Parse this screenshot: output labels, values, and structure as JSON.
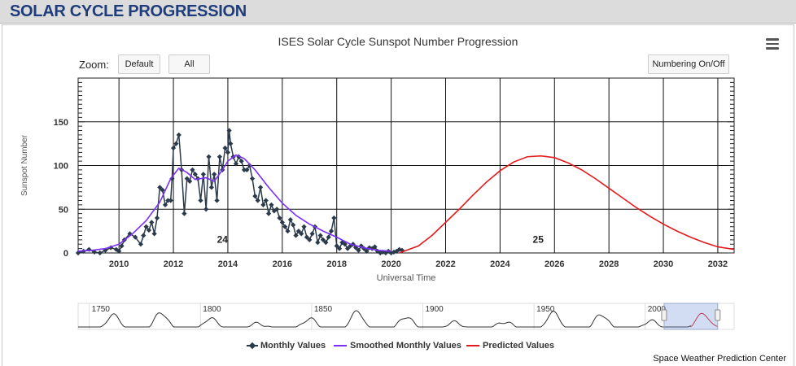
{
  "header": {
    "title": "SOLAR CYCLE PROGRESSION"
  },
  "chart": {
    "title": "ISES Solar Cycle Sunspot Number Progression",
    "zoom_label": "Zoom:",
    "zoom_buttons": [
      "Default",
      "All"
    ],
    "numbering_button": "Numbering On/Off",
    "credit": "Space Weather Prediction Center"
  },
  "chart_data": {
    "type": "line",
    "title": "ISES Solar Cycle Sunspot Number Progression",
    "xlabel": "Universal Time",
    "ylabel": "Sunspot Number",
    "xlim": [
      2008.5,
      2032.6
    ],
    "ylim": [
      0,
      200
    ],
    "x_ticks": [
      "2010",
      "2012",
      "2014",
      "2016",
      "2018",
      "2020",
      "2022",
      "2024",
      "2026",
      "2028",
      "2030",
      "2032"
    ],
    "y_ticks": [
      "0",
      "50",
      "100",
      "150"
    ],
    "grid": true,
    "cycle_labels": [
      {
        "label": "24",
        "x": 2013.8
      },
      {
        "label": "25",
        "x": 2025.4
      }
    ],
    "series": [
      {
        "name": "Monthly Values",
        "color": "#2b3a4a",
        "x": [
          2008.5,
          2008.7,
          2008.9,
          2009.1,
          2009.3,
          2009.5,
          2009.7,
          2009.9,
          2010.0,
          2010.1,
          2010.2,
          2010.4,
          2010.6,
          2010.8,
          2010.9,
          2011.0,
          2011.1,
          2011.2,
          2011.3,
          2011.4,
          2011.5,
          2011.6,
          2011.7,
          2011.8,
          2011.9,
          2011.95,
          2012.0,
          2012.1,
          2012.2,
          2012.3,
          2012.4,
          2012.5,
          2012.6,
          2012.7,
          2012.8,
          2012.9,
          2013.0,
          2013.1,
          2013.2,
          2013.3,
          2013.4,
          2013.5,
          2013.6,
          2013.7,
          2013.8,
          2013.9,
          2014.0,
          2014.05,
          2014.1,
          2014.2,
          2014.3,
          2014.4,
          2014.5,
          2014.6,
          2014.7,
          2014.8,
          2014.9,
          2015.0,
          2015.1,
          2015.2,
          2015.3,
          2015.4,
          2015.5,
          2015.6,
          2015.7,
          2015.8,
          2015.9,
          2016.0,
          2016.1,
          2016.2,
          2016.3,
          2016.4,
          2016.5,
          2016.6,
          2016.7,
          2016.8,
          2016.9,
          2017.0,
          2017.1,
          2017.2,
          2017.3,
          2017.4,
          2017.5,
          2017.6,
          2017.7,
          2017.8,
          2017.9,
          2018.0,
          2018.1,
          2018.2,
          2018.3,
          2018.4,
          2018.5,
          2018.6,
          2018.7,
          2018.8,
          2018.9,
          2019.0,
          2019.1,
          2019.2,
          2019.3,
          2019.4,
          2019.5,
          2019.6,
          2019.7,
          2019.8,
          2019.9,
          2020.0,
          2020.1,
          2020.2,
          2020.3,
          2020.4
        ],
        "values": [
          0,
          2,
          4,
          1,
          0,
          3,
          6,
          4,
          2,
          8,
          15,
          22,
          18,
          10,
          20,
          30,
          26,
          35,
          22,
          40,
          75,
          72,
          55,
          60,
          60,
          85,
          120,
          125,
          135,
          95,
          45,
          85,
          82,
          95,
          90,
          85,
          60,
          90,
          50,
          110,
          75,
          90,
          60,
          110,
          95,
          120,
          115,
          140,
          125,
          110,
          102,
          110,
          105,
          95,
          95,
          100,
          85,
          65,
          60,
          75,
          55,
          60,
          45,
          55,
          48,
          50,
          40,
          35,
          30,
          25,
          38,
          32,
          20,
          25,
          22,
          30,
          18,
          15,
          22,
          30,
          12,
          20,
          15,
          12,
          18,
          25,
          40,
          8,
          5,
          12,
          10,
          5,
          8,
          10,
          6,
          3,
          8,
          5,
          2,
          6,
          5,
          7,
          2,
          0,
          1,
          0,
          2,
          0,
          1,
          2,
          4,
          3
        ]
      },
      {
        "name": "Smoothed Monthly Values",
        "color": "#7b2ff7",
        "x": [
          2008.5,
          2009.0,
          2009.5,
          2010.0,
          2010.5,
          2011.0,
          2011.5,
          2011.9,
          2012.2,
          2012.5,
          2012.8,
          2013.2,
          2013.5,
          2013.8,
          2014.0,
          2014.3,
          2014.6,
          2015.0,
          2015.5,
          2016.0,
          2016.5,
          2017.0,
          2017.5,
          2018.0,
          2018.5,
          2019.0,
          2019.5,
          2020.0
        ],
        "values": [
          2,
          3,
          5,
          10,
          22,
          37,
          58,
          85,
          97,
          92,
          84,
          86,
          82,
          95,
          105,
          112,
          108,
          95,
          75,
          57,
          43,
          33,
          25,
          18,
          10,
          6,
          3,
          2
        ]
      },
      {
        "name": "Predicted Values",
        "color": "#e41a1c",
        "x": [
          2020.3,
          2021.0,
          2021.5,
          2022.0,
          2022.5,
          2023.0,
          2023.5,
          2024.0,
          2024.5,
          2025.0,
          2025.5,
          2026.0,
          2026.5,
          2027.0,
          2027.5,
          2028.0,
          2028.5,
          2029.0,
          2029.5,
          2030.0,
          2030.5,
          2031.0,
          2031.5,
          2032.0,
          2032.6
        ],
        "values": [
          0,
          8,
          20,
          35,
          50,
          66,
          81,
          94,
          104,
          110,
          111,
          109,
          103,
          95,
          85,
          74,
          63,
          52,
          42,
          33,
          25,
          18,
          12,
          7,
          4
        ]
      }
    ]
  },
  "navigator": {
    "tick_labels": [
      "1750",
      "1800",
      "1850",
      "1900",
      "1950",
      "2000"
    ],
    "year_range": [
      1745,
      2040
    ],
    "selected_range": [
      2008.5,
      2032.6
    ]
  },
  "legend": {
    "items": [
      {
        "label": "Monthly Values",
        "color": "#2b3a4a"
      },
      {
        "label": "Smoothed Monthly Values",
        "color": "#7b2ff7"
      },
      {
        "label": "Predicted Values",
        "color": "#e41a1c"
      }
    ]
  }
}
